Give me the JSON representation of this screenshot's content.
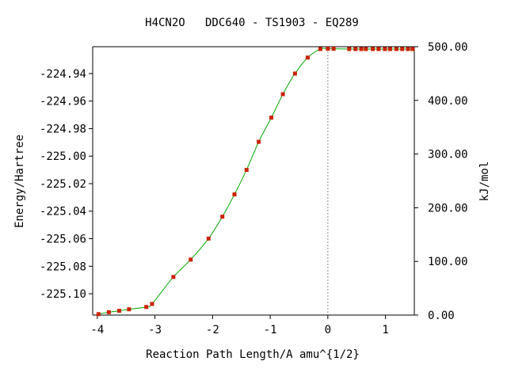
{
  "chart_data": {
    "type": "line",
    "title": "H4CN2O   DDC640 - TS1903 - EQ289",
    "xlabel": "Reaction Path Length/A amu^{1/2}",
    "ylabel": "Energy/Hartree",
    "y2label": "kJ/mol",
    "xlim": [
      -4.08,
      1.5
    ],
    "ylim": [
      -225.1155,
      -224.9205
    ],
    "y2lim": [
      0,
      500
    ],
    "x_ticks": [
      "-4",
      "-3",
      "-2",
      "-1",
      "0",
      "1"
    ],
    "y_ticks": [
      "-224.94",
      "-224.96",
      "-224.98",
      "-225.00",
      "-225.02",
      "-225.04",
      "-225.06",
      "-225.08",
      "-225.10"
    ],
    "y2_ticks": [
      "500.00",
      "400.00",
      "300.00",
      "200.00",
      "100.00",
      "0.00"
    ],
    "ts_marker_x": 0.0,
    "grid": false,
    "series": [
      {
        "color": "#00aa00",
        "marker_color": "#cc2200",
        "points": [
          [
            -3.98,
            -225.1148
          ],
          [
            -3.8,
            -225.1134
          ],
          [
            -3.62,
            -225.1124
          ],
          [
            -3.45,
            -225.1113
          ],
          [
            -3.15,
            -225.1096
          ],
          [
            -3.05,
            -225.1074
          ],
          [
            -2.68,
            -225.0878
          ],
          [
            -2.38,
            -225.0752
          ],
          [
            -2.07,
            -225.0599
          ],
          [
            -1.83,
            -225.044
          ],
          [
            -1.62,
            -225.0278
          ],
          [
            -1.41,
            -225.01
          ],
          [
            -1.2,
            -224.9896
          ],
          [
            -0.98,
            -224.972
          ],
          [
            -0.78,
            -224.955
          ],
          [
            -0.57,
            -224.94
          ],
          [
            -0.35,
            -224.9284
          ],
          [
            -0.13,
            -224.9222
          ],
          [
            0.0,
            -224.922
          ],
          [
            0.1,
            -224.922
          ],
          [
            0.37,
            -224.9222
          ],
          [
            0.48,
            -224.9222
          ],
          [
            0.58,
            -224.9222
          ],
          [
            0.66,
            -224.9222
          ],
          [
            0.78,
            -224.9222
          ],
          [
            0.88,
            -224.9222
          ],
          [
            0.99,
            -224.9222
          ],
          [
            1.08,
            -224.9222
          ],
          [
            1.19,
            -224.9222
          ],
          [
            1.29,
            -224.9222
          ],
          [
            1.39,
            -224.9222
          ],
          [
            1.47,
            -224.9222
          ]
        ]
      }
    ]
  }
}
